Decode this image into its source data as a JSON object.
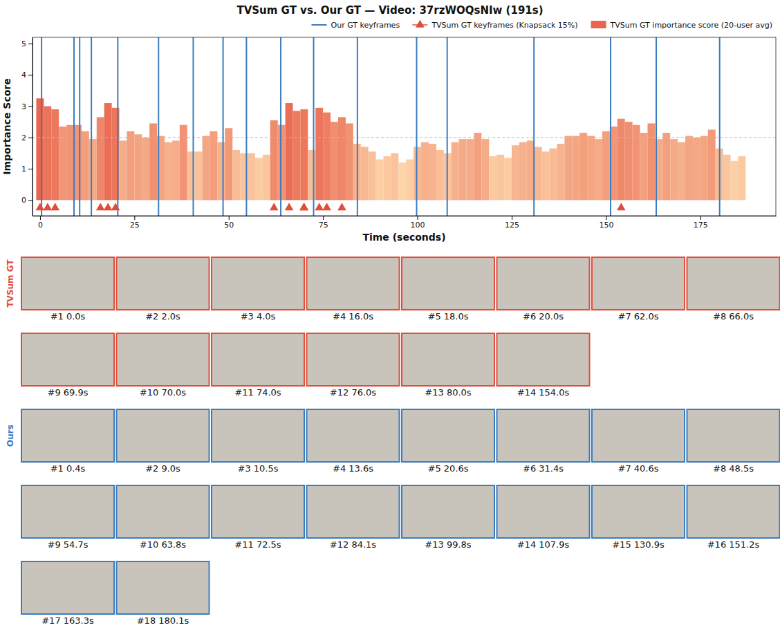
{
  "chart_data": {
    "type": "bar",
    "title": "TVSum GT vs. Our GT — Video: 37rzWOQsNIw (191s)",
    "x_label": "Time (seconds)",
    "y_label": "Importance Score",
    "xlim": [
      -2,
      195
    ],
    "xticks": [
      0,
      25,
      50,
      75,
      100,
      125,
      150,
      175
    ],
    "ylim": [
      -0.5,
      5.2
    ],
    "yticks": [
      0,
      1,
      2,
      3,
      4,
      5
    ],
    "reference_line": 2,
    "legend": "top",
    "series": [
      {
        "name": "Our GT keyframes",
        "type": "vline",
        "color": "#3a7dbf",
        "x": [
          0.4,
          9.0,
          10.5,
          13.6,
          20.6,
          31.4,
          40.6,
          48.5,
          54.7,
          63.8,
          72.5,
          84.1,
          99.8,
          107.9,
          130.9,
          151.2,
          163.3,
          180.1
        ]
      },
      {
        "name": "TVSum GT keyframes (Knapsack 15%)",
        "type": "scatter",
        "marker": "triangle",
        "color": "#e04e3b",
        "x": [
          0,
          2,
          4,
          16,
          18,
          20,
          62,
          66,
          69.9,
          70,
          74,
          76,
          80,
          154
        ],
        "values": [
          -0.25,
          -0.25,
          -0.25,
          -0.25,
          -0.25,
          -0.25,
          -0.25,
          -0.25,
          -0.25,
          -0.25,
          -0.25,
          -0.25,
          -0.25,
          -0.25
        ]
      },
      {
        "name": "TVSum GT importance score (20-user avg)",
        "type": "bar",
        "color": "#e8664f",
        "x": [
          0,
          2,
          4,
          6,
          8,
          10,
          12,
          14,
          16,
          18,
          20,
          22,
          24,
          26,
          28,
          30,
          32,
          34,
          36,
          38,
          40,
          42,
          44,
          46,
          48,
          50,
          52,
          54,
          56,
          58,
          60,
          62,
          64,
          66,
          68,
          70,
          72,
          74,
          76,
          78,
          80,
          82,
          84,
          86,
          88,
          90,
          92,
          94,
          96,
          98,
          100,
          102,
          104,
          106,
          108,
          110,
          112,
          114,
          116,
          118,
          120,
          122,
          124,
          126,
          128,
          130,
          132,
          134,
          136,
          138,
          140,
          142,
          144,
          146,
          148,
          150,
          152,
          154,
          156,
          158,
          160,
          162,
          164,
          166,
          168,
          170,
          172,
          174,
          176,
          178,
          180,
          182,
          184,
          186
        ],
        "values": [
          3.25,
          3.0,
          2.9,
          2.35,
          2.4,
          2.4,
          2.2,
          1.95,
          2.65,
          3.1,
          2.95,
          1.9,
          2.2,
          2.1,
          2.0,
          2.45,
          2.05,
          1.85,
          1.9,
          2.4,
          1.55,
          1.55,
          2.05,
          2.2,
          1.85,
          2.3,
          1.6,
          1.5,
          1.5,
          1.35,
          1.45,
          2.55,
          2.4,
          3.1,
          2.85,
          2.9,
          1.6,
          2.95,
          2.8,
          2.5,
          2.65,
          2.45,
          1.8,
          1.7,
          1.55,
          1.3,
          1.4,
          1.5,
          1.2,
          1.3,
          1.7,
          1.85,
          1.8,
          1.6,
          1.5,
          1.85,
          1.95,
          1.95,
          2.15,
          1.95,
          1.4,
          1.45,
          1.35,
          1.75,
          1.85,
          1.9,
          1.7,
          1.55,
          1.65,
          1.8,
          2.05,
          2.05,
          2.15,
          2.05,
          1.95,
          2.2,
          2.35,
          2.6,
          2.5,
          2.4,
          2.15,
          2.45,
          1.95,
          2.15,
          1.95,
          1.85,
          2.05,
          2.0,
          2.05,
          2.25,
          1.65,
          1.45,
          1.25,
          1.4
        ]
      }
    ]
  },
  "thumbnails": [
    {
      "label": "TVSum GT",
      "color": "#e04e3b",
      "frames": [
        "#1 0.0s",
        "#2 2.0s",
        "#3 4.0s",
        "#4 16.0s",
        "#5 18.0s",
        "#6 20.0s",
        "#7 62.0s",
        "#8 66.0s",
        "#9 69.9s",
        "#10 70.0s",
        "#11 74.0s",
        "#12 76.0s",
        "#13 80.0s",
        "#14 154.0s"
      ]
    },
    {
      "label": "Ours",
      "color": "#3a7dbf",
      "frames": [
        "#1 0.4s",
        "#2 9.0s",
        "#3 10.5s",
        "#4 13.6s",
        "#5 20.6s",
        "#6 31.4s",
        "#7 40.6s",
        "#8 48.5s",
        "#9 54.7s",
        "#10 63.8s",
        "#11 72.5s",
        "#12 84.1s",
        "#13 99.8s",
        "#14 107.9s",
        "#15 130.9s",
        "#16 151.2s",
        "#17 163.3s",
        "#18 180.1s"
      ]
    }
  ]
}
